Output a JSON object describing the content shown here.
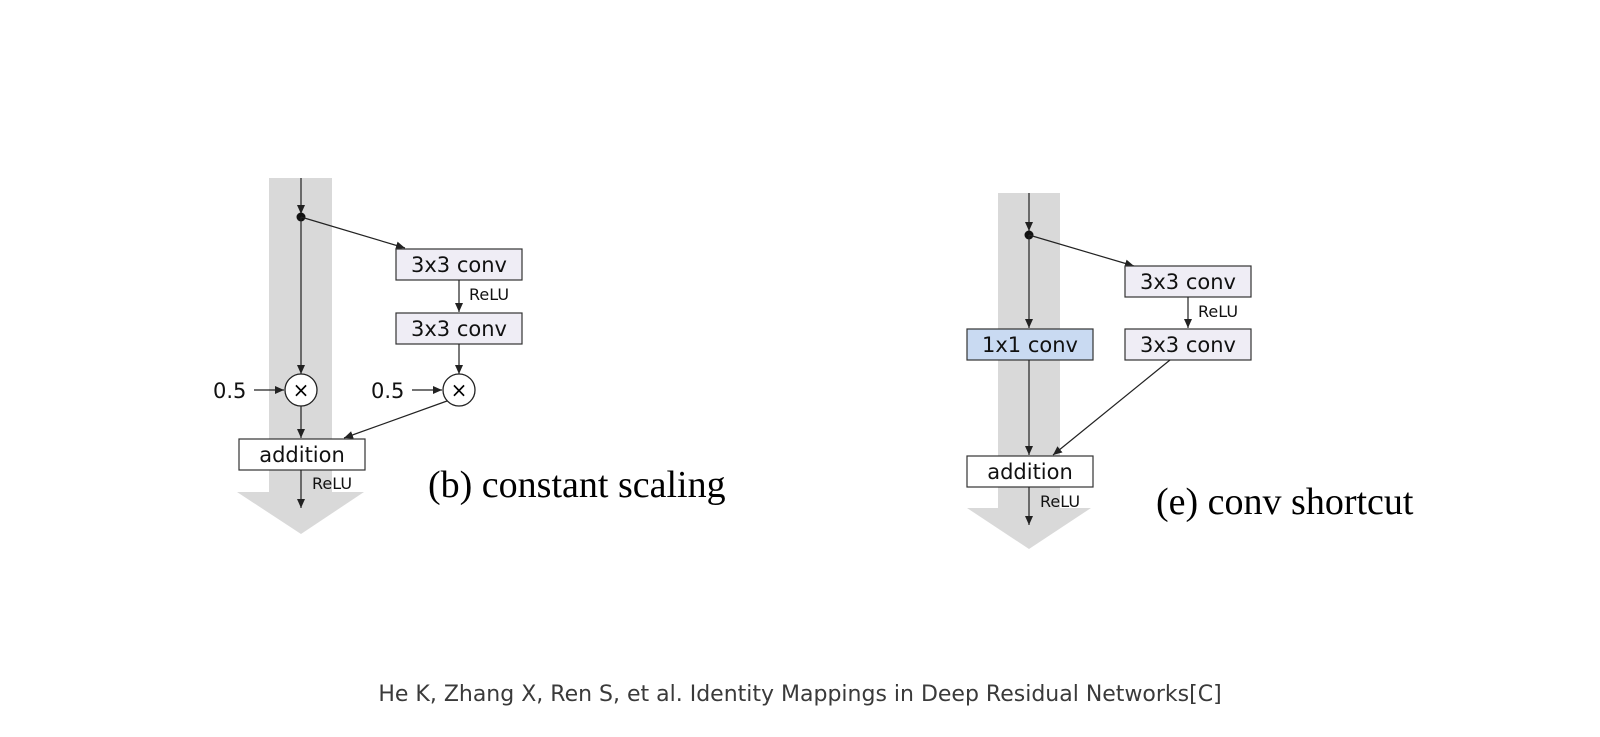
{
  "panel_b": {
    "conv1": "3x3 conv",
    "relu_mid": "ReLU",
    "conv2": "3x3 conv",
    "scale_left": "0.5",
    "scale_right": "0.5",
    "multiply_symbol": "×",
    "addition": "addition",
    "relu_out": "ReLU",
    "caption": "(b) constant scaling"
  },
  "panel_e": {
    "conv1": "3x3 conv",
    "relu_mid": "ReLU",
    "conv2": "3x3 conv",
    "shortcut_conv": "1x1 conv",
    "addition": "addition",
    "relu_out": "ReLU",
    "caption": "(e) conv shortcut"
  },
  "citation": "He K, Zhang X, Ren S, et al. Identity Mappings in Deep Residual Networks[C]",
  "colors": {
    "shortcut_band": "#d9d9d9",
    "conv_box": "#efedf5",
    "shortcut_conv_box": "#c9daf2",
    "addition_box": "#ffffff"
  }
}
